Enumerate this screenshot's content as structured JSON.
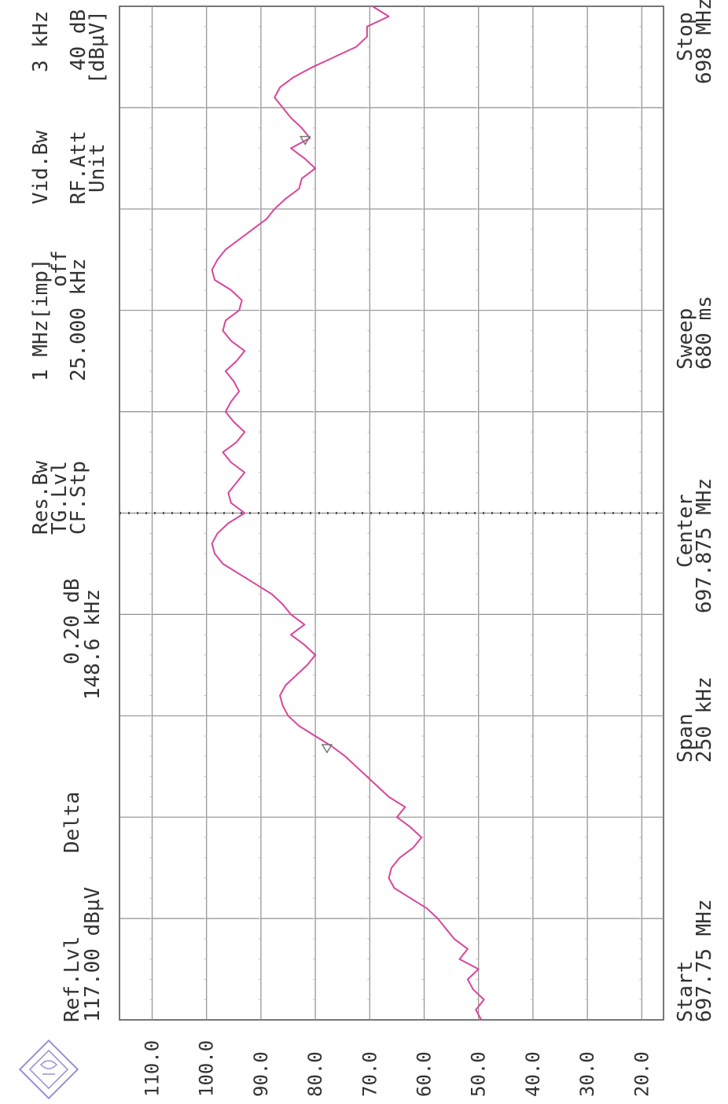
{
  "header": {
    "ref_lvl_label": "Ref.Lvl",
    "ref_lvl_value": "117.00 dBµV",
    "delta_label": "Delta",
    "delta_value_db": "0.20 dB",
    "delta_value_khz": "148.6 kHz",
    "res_bw_label": "Res.Bw",
    "tg_lvl_label": "TG.Lvl",
    "cf_stp_label": "CF.Stp",
    "res_bw_value": "1 MHz[imp]",
    "tg_lvl_value": "off",
    "cf_stp_value": "25.000 kHz",
    "vid_bw_label": "Vid.Bw",
    "rf_att_label": "RF.Att",
    "unit_label": "Unit",
    "vid_bw_value": "3 kHz",
    "rf_att_value": "40 dB",
    "unit_value": "[dBµV]"
  },
  "footer": {
    "start_label": "Start",
    "start_value": "697.75 MHz",
    "span_label": "Span",
    "span_value": "250 kHz",
    "center_label": "Center",
    "center_value": "697.875 MHz",
    "sweep_label": "Sweep",
    "sweep_value": "680 ms",
    "stop_label": "Stop",
    "stop_value": "698 MHz"
  },
  "logo": {
    "text": "R&S"
  },
  "colors": {
    "trace": "#d9459a",
    "grid": "#8f8f8f",
    "text": "#333333"
  },
  "chart_data": {
    "type": "line",
    "orientation": "rotated-90",
    "xlabel": "",
    "ylabel": "",
    "xlim": [
      697.75,
      698.0
    ],
    "ylim": [
      16.0,
      116.0
    ],
    "yticks": [
      "110.0",
      "100.0",
      "90.0",
      "80.0",
      "70.0",
      "60.0",
      "50.0",
      "40.0",
      "30.0",
      "20.0"
    ],
    "grid": true,
    "center_marker_mhz": 697.875,
    "series": [
      {
        "x": [
          697.75,
          697.7525,
          697.755,
          697.7575,
          697.76,
          697.7625,
          697.765,
          697.7675,
          697.77,
          697.7725,
          697.775,
          697.7775,
          697.78,
          697.7825,
          697.785,
          697.7875,
          697.79,
          697.7925,
          697.795,
          697.7975,
          697.8,
          697.8025,
          697.805,
          697.8075,
          697.81,
          697.8125,
          697.815,
          697.8175,
          697.82,
          697.8225,
          697.825,
          697.8275,
          697.83,
          697.8325,
          697.835,
          697.8375,
          697.84,
          697.8425,
          697.845,
          697.8475,
          697.85,
          697.8525,
          697.855,
          697.8575,
          697.86,
          697.8625,
          697.865,
          697.8675,
          697.87,
          697.8725,
          697.875,
          697.8775,
          697.88,
          697.8825,
          697.885,
          697.8875,
          697.89,
          697.8925,
          697.895,
          697.8975,
          697.9,
          697.9025,
          697.905,
          697.9075,
          697.91,
          697.9125,
          697.915,
          697.9175,
          697.92,
          697.9225,
          697.925,
          697.9275,
          697.93,
          697.9325,
          697.935,
          697.9375,
          697.94,
          697.9425,
          697.945,
          697.9475,
          697.95,
          697.9525,
          697.955,
          697.9575,
          697.96,
          697.9625,
          697.965,
          697.9675,
          697.97,
          697.9725,
          697.975,
          697.9775,
          697.98,
          697.9825,
          697.985,
          697.9875,
          697.99,
          697.9925,
          697.995,
          697.9975,
          698.0
        ],
        "values": [
          49.5,
          50.5,
          49.0,
          51.0,
          52.0,
          50.0,
          53.5,
          52.0,
          54.5,
          56.0,
          57.5,
          59.5,
          62.5,
          65.5,
          66.5,
          66.0,
          64.5,
          62.0,
          60.5,
          62.5,
          65.0,
          63.5,
          66.5,
          68.5,
          70.5,
          72.5,
          74.5,
          77.0,
          80.0,
          83.0,
          85.0,
          86.0,
          86.5,
          85.5,
          83.5,
          81.5,
          80.0,
          82.0,
          84.5,
          82.0,
          84.5,
          86.0,
          88.0,
          91.0,
          94.0,
          97.0,
          98.5,
          99.0,
          98.0,
          96.0,
          93.0,
          95.5,
          96.0,
          94.5,
          93.0,
          95.5,
          97.0,
          94.5,
          93.0,
          95.0,
          96.5,
          95.5,
          94.0,
          95.0,
          96.5,
          94.5,
          93.0,
          95.5,
          97.0,
          96.5,
          94.0,
          93.5,
          95.5,
          98.5,
          99.0,
          98.0,
          96.5,
          94.0,
          91.5,
          89.0,
          87.5,
          85.5,
          83.0,
          82.5,
          80.0,
          82.0,
          84.5,
          81.0,
          82.5,
          84.5,
          86.0,
          87.5,
          86.5,
          84.0,
          80.5,
          76.5,
          72.5,
          70.5,
          70.5,
          66.5,
          69.5
        ]
      }
    ]
  }
}
